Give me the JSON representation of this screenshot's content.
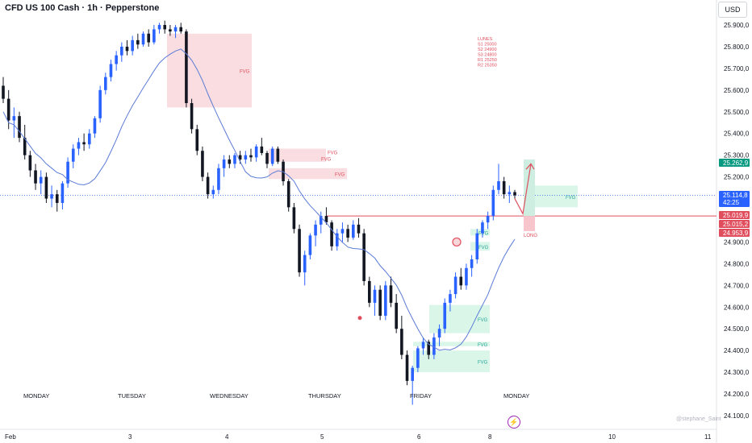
{
  "header": {
    "title": "CFD US 100 Cash · 1h · Pepperstone",
    "currency": "USD"
  },
  "colors": {
    "up": "#2962ff",
    "down": "#131722",
    "ma": "#5b7bd6",
    "red_line": "#e04e5e",
    "fvg_red": "#f8d7da",
    "fvg_green": "#d4f5e4",
    "fvg_text_red": "#e04e5e",
    "fvg_text_green": "#26a69a"
  },
  "icons": {
    "lightning": "lightning-icon"
  },
  "watermark": "@stephane_Saint",
  "chart_data": {
    "type": "candlestick",
    "ylim": [
      24080,
      26000
    ],
    "y_ticks": [
      "25.900,0",
      "25.800,0",
      "25.700,0",
      "25.600,0",
      "25.500,0",
      "25.400,0",
      "25.300,0",
      "25.200,0",
      "24.900,0",
      "24.800,0",
      "24.700,0",
      "24.600,0",
      "24.500,0",
      "24.400,0",
      "24.300,0",
      "24.200,0",
      "24.100,0"
    ],
    "x_day_labels": [
      "MONDAY",
      "TUESDAY",
      "WEDNESDAY",
      "THURSDAY",
      "FRIDAY",
      "MONDAY"
    ],
    "x_date_labels": [
      "Feb",
      "3",
      "4",
      "5",
      "6",
      "8",
      "10",
      "11"
    ],
    "price_tags": [
      {
        "label": "25.262,9",
        "value": 25263,
        "color": "#089981"
      },
      {
        "label": "25.114,8",
        "value": 25115,
        "color": "#2962ff",
        "sub": "42:25"
      },
      {
        "label": "25.019,9",
        "value": 25020,
        "color": "#e04e5e"
      },
      {
        "label": "25.015,2",
        "value": 25015,
        "color": "#e04e5e"
      },
      {
        "label": "24.953,9",
        "value": 24954,
        "color": "#e04e5e"
      }
    ],
    "levels_note": [
      "LUNES",
      "S1 25000",
      "S2 24900",
      "S3 24800",
      "R1 25250",
      "R2 25350"
    ],
    "fvg_zones": [
      {
        "label": "FVG",
        "side": "bear",
        "top": 25860,
        "bottom": 25520
      },
      {
        "label": "FVG",
        "side": "bear",
        "top": 25330,
        "bottom": 25300
      },
      {
        "label": "FVG",
        "side": "bear",
        "top": 25300,
        "bottom": 25270
      },
      {
        "label": "FVG",
        "side": "bear",
        "top": 25240,
        "bottom": 25190
      },
      {
        "label": "FVG",
        "side": "bull",
        "top": 25160,
        "bottom": 25060
      },
      {
        "label": "FVG",
        "side": "bull",
        "top": 24960,
        "bottom": 24930
      },
      {
        "label": "FVG",
        "side": "bull",
        "top": 24900,
        "bottom": 24860
      },
      {
        "label": "FVG",
        "side": "bull",
        "top": 24610,
        "bottom": 24480
      },
      {
        "label": "FVG",
        "side": "bull",
        "top": 24440,
        "bottom": 24420
      },
      {
        "label": "FVG",
        "side": "bull",
        "top": 24400,
        "bottom": 24300
      }
    ],
    "long_label": "LONG",
    "close_price": 25115,
    "red_level": 25020,
    "dotted_level": 25115,
    "candles": [
      [
        25620,
        25660,
        25540,
        25560
      ],
      [
        25560,
        25600,
        25420,
        25460
      ],
      [
        25460,
        25520,
        25380,
        25480
      ],
      [
        25480,
        25500,
        25360,
        25380
      ],
      [
        25380,
        25440,
        25280,
        25300
      ],
      [
        25300,
        25320,
        25200,
        25230
      ],
      [
        25230,
        25260,
        25140,
        25170
      ],
      [
        25170,
        25230,
        25120,
        25200
      ],
      [
        25200,
        25220,
        25080,
        25100
      ],
      [
        25100,
        25160,
        25060,
        25120
      ],
      [
        25120,
        25140,
        25040,
        25080
      ],
      [
        25080,
        25180,
        25050,
        25170
      ],
      [
        25170,
        25290,
        25150,
        25270
      ],
      [
        25270,
        25350,
        25240,
        25330
      ],
      [
        25330,
        25380,
        25300,
        25360
      ],
      [
        25360,
        25400,
        25320,
        25350
      ],
      [
        25350,
        25420,
        25330,
        25400
      ],
      [
        25400,
        25480,
        25380,
        25470
      ],
      [
        25470,
        25620,
        25450,
        25600
      ],
      [
        25600,
        25680,
        25580,
        25660
      ],
      [
        25660,
        25740,
        25640,
        25720
      ],
      [
        25720,
        25780,
        25690,
        25760
      ],
      [
        25760,
        25820,
        25730,
        25800
      ],
      [
        25800,
        25830,
        25760,
        25780
      ],
      [
        25780,
        25850,
        25760,
        25830
      ],
      [
        25830,
        25860,
        25790,
        25810
      ],
      [
        25810,
        25870,
        25800,
        25860
      ],
      [
        25860,
        25880,
        25800,
        25820
      ],
      [
        25820,
        25900,
        25810,
        25880
      ],
      [
        25880,
        25910,
        25860,
        25900
      ],
      [
        25900,
        25920,
        25860,
        25880
      ],
      [
        25880,
        25900,
        25850,
        25870
      ],
      [
        25870,
        25900,
        25840,
        25890
      ],
      [
        25890,
        25910,
        25860,
        25870
      ],
      [
        25870,
        25880,
        25520,
        25540
      ],
      [
        25540,
        25560,
        25400,
        25420
      ],
      [
        25420,
        25440,
        25300,
        25320
      ],
      [
        25320,
        25340,
        25180,
        25200
      ],
      [
        25200,
        25220,
        25100,
        25120
      ],
      [
        25120,
        25160,
        25100,
        25140
      ],
      [
        25140,
        25260,
        25120,
        25240
      ],
      [
        25240,
        25300,
        25200,
        25280
      ],
      [
        25280,
        25300,
        25240,
        25260
      ],
      [
        25260,
        25310,
        25240,
        25300
      ],
      [
        25300,
        25320,
        25260,
        25280
      ],
      [
        25280,
        25320,
        25260,
        25300
      ],
      [
        25300,
        25330,
        25270,
        25290
      ],
      [
        25290,
        25350,
        25270,
        25340
      ],
      [
        25340,
        25380,
        25300,
        25310
      ],
      [
        25310,
        25320,
        25240,
        25260
      ],
      [
        25260,
        25340,
        25250,
        25330
      ],
      [
        25330,
        25340,
        25260,
        25270
      ],
      [
        25270,
        25280,
        25160,
        25180
      ],
      [
        25180,
        25190,
        25040,
        25060
      ],
      [
        25060,
        25080,
        24940,
        24960
      ],
      [
        24960,
        24980,
        24740,
        24760
      ],
      [
        24760,
        24860,
        24700,
        24840
      ],
      [
        24840,
        24940,
        24820,
        24930
      ],
      [
        24930,
        25000,
        24880,
        24980
      ],
      [
        24980,
        25040,
        24940,
        25020
      ],
      [
        25020,
        25060,
        24980,
        24990
      ],
      [
        24990,
        25000,
        24860,
        24880
      ],
      [
        24880,
        24960,
        24860,
        24940
      ],
      [
        24940,
        24990,
        24900,
        24960
      ],
      [
        24960,
        24980,
        24900,
        24920
      ],
      [
        24920,
        25000,
        24910,
        24980
      ],
      [
        24980,
        25010,
        24920,
        24940
      ],
      [
        24940,
        24960,
        24700,
        24720
      ],
      [
        24720,
        24740,
        24600,
        24620
      ],
      [
        24620,
        24700,
        24560,
        24680
      ],
      [
        24680,
        24700,
        24540,
        24560
      ],
      [
        24560,
        24720,
        24540,
        24700
      ],
      [
        24700,
        24740,
        24600,
        24620
      ],
      [
        24620,
        24660,
        24480,
        24500
      ],
      [
        24500,
        24560,
        24360,
        24380
      ],
      [
        24380,
        24400,
        24240,
        24260
      ],
      [
        24260,
        24330,
        24150,
        24320
      ],
      [
        24320,
        24420,
        24300,
        24410
      ],
      [
        24410,
        24460,
        24380,
        24440
      ],
      [
        24440,
        24450,
        24360,
        24380
      ],
      [
        24380,
        24480,
        24360,
        24460
      ],
      [
        24460,
        24520,
        24420,
        24500
      ],
      [
        24500,
        24640,
        24480,
        24620
      ],
      [
        24620,
        24680,
        24580,
        24660
      ],
      [
        24660,
        24760,
        24640,
        24740
      ],
      [
        24740,
        24780,
        24680,
        24700
      ],
      [
        24700,
        24800,
        24680,
        24780
      ],
      [
        24780,
        24840,
        24740,
        24820
      ],
      [
        24820,
        24960,
        24800,
        24940
      ],
      [
        24940,
        25000,
        24920,
        24990
      ],
      [
        24990,
        25040,
        24960,
        25020
      ],
      [
        25020,
        25160,
        25000,
        25140
      ],
      [
        25140,
        25260,
        25120,
        25180
      ],
      [
        25180,
        25200,
        25100,
        25120
      ],
      [
        25120,
        25160,
        25080,
        25130
      ],
      [
        25130,
        25140,
        25100,
        25115
      ]
    ]
  }
}
